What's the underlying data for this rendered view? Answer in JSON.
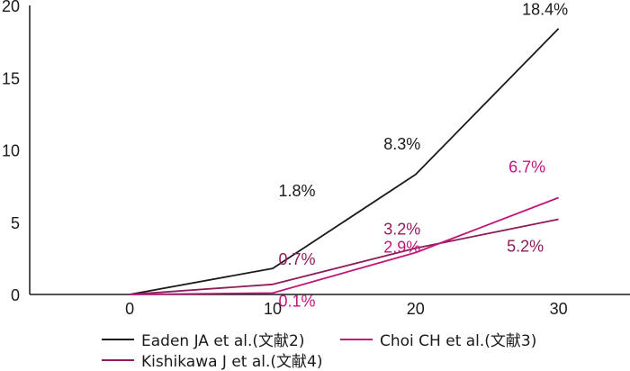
{
  "chart_data": {
    "type": "line",
    "x": [
      0,
      10,
      20,
      30
    ],
    "xlim": [
      -7,
      35
    ],
    "ylim": [
      0,
      20
    ],
    "xticks": [
      0,
      10,
      20,
      30
    ],
    "yticks": [
      0,
      5,
      10,
      15,
      20
    ],
    "grid": false,
    "legend_position": "bottom",
    "series": [
      {
        "name": "Eaden JA et al.(文献2)",
        "color": "#1a1a1a",
        "values": [
          0,
          1.8,
          8.3,
          18.4
        ],
        "labels": [
          "",
          "1.8%",
          "8.3%",
          "18.4%"
        ]
      },
      {
        "name": "Choi CH et al.(文献3)",
        "color": "#c0177a",
        "values": [
          0,
          0.1,
          2.9,
          6.7
        ],
        "labels": [
          "",
          "0.1%",
          "2.9%",
          "6.7%"
        ]
      },
      {
        "name": "Kishikawa J et al.(文献4)",
        "color": "#8e1b5a",
        "values": [
          0,
          0.7,
          3.2,
          5.2
        ],
        "labels": [
          "",
          "0.7%",
          "3.2%",
          "5.2%"
        ]
      }
    ]
  }
}
